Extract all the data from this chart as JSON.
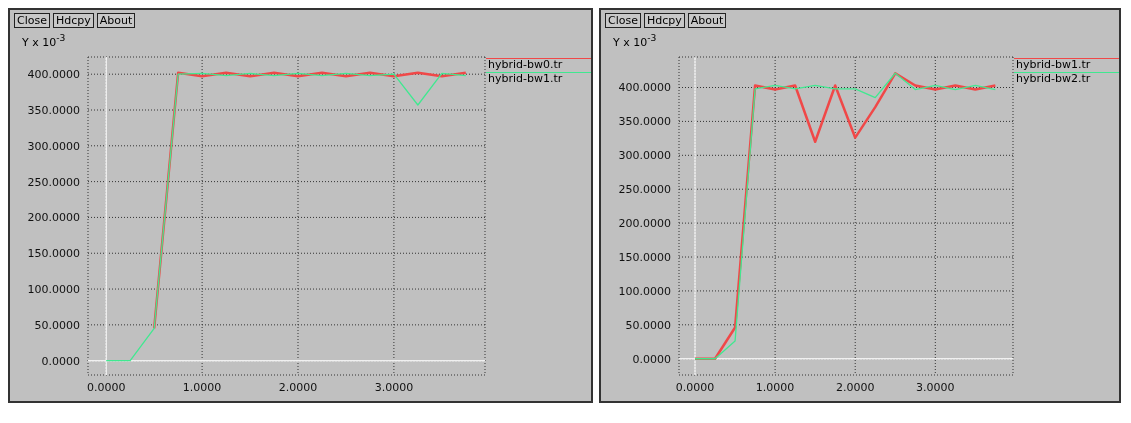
{
  "chart_data": [
    {
      "type": "line",
      "ylabel": "Y x 10$^{-3}$",
      "annotations": [
        "Close",
        "Hdcpy",
        "About"
      ],
      "grid": true,
      "legend": "top right",
      "marker": "none",
      "line_style": "solid",
      "x": [
        0,
        0.25,
        0.5,
        0.75,
        1,
        1.25,
        1.5,
        1.75,
        2,
        2.25,
        2.5,
        2.75,
        3,
        3.25,
        3.5,
        3.75
      ],
      "xlim": [
        -0.19,
        3.95
      ],
      "xticks": [
        {
          "value": 0,
          "label": "0.0000"
        },
        {
          "value": 1,
          "label": "1.0000"
        },
        {
          "value": 2,
          "label": "2.0000"
        },
        {
          "value": 3,
          "label": "3.0000"
        }
      ],
      "ylim": [
        -20,
        424
      ],
      "yticks": [
        {
          "value": 0,
          "label": "0.0000"
        },
        {
          "value": 50,
          "label": "50.0000"
        },
        {
          "value": 100,
          "label": "100.0000"
        },
        {
          "value": 150,
          "label": "150.0000"
        },
        {
          "value": 200,
          "label": "200.0000"
        },
        {
          "value": 250,
          "label": "250.0000"
        },
        {
          "value": 300,
          "label": "300.0000"
        },
        {
          "value": 350,
          "label": "350.0000"
        },
        {
          "value": 400,
          "label": "400.0000"
        }
      ],
      "series": [
        {
          "name": "hybrid-bw0.tr",
          "color": "#f04848",
          "values": [
            null,
            null,
            45,
            402,
            397,
            402,
            397,
            402,
            397,
            402,
            397,
            402,
            397,
            402,
            397,
            402
          ]
        },
        {
          "name": "hybrid-bw1.tr",
          "color": "#40e890",
          "values": [
            0,
            0,
            45,
            400,
            401,
            398,
            401,
            398,
            401,
            398,
            401,
            398,
            400,
            357,
            401,
            398
          ]
        }
      ]
    },
    {
      "type": "line",
      "ylabel": "Y x 10$^{-3}$",
      "annotations": [
        "Close",
        "Hdcpy",
        "About"
      ],
      "grid": true,
      "legend": "top right",
      "marker": "none",
      "line_style": "solid",
      "x": [
        0,
        0.25,
        0.5,
        0.75,
        1,
        1.25,
        1.5,
        1.75,
        2,
        2.25,
        2.5,
        2.75,
        3,
        3.25,
        3.5,
        3.75
      ],
      "xlim": [
        -0.2,
        3.97
      ],
      "xticks": [
        {
          "value": 0,
          "label": "0.0000"
        },
        {
          "value": 1,
          "label": "1.0000"
        },
        {
          "value": 2,
          "label": "2.0000"
        },
        {
          "value": 3,
          "label": "3.0000"
        }
      ],
      "ylim": [
        -24,
        445
      ],
      "yticks": [
        {
          "value": 0,
          "label": "0.0000"
        },
        {
          "value": 50,
          "label": "50.0000"
        },
        {
          "value": 100,
          "label": "100.0000"
        },
        {
          "value": 150,
          "label": "150.0000"
        },
        {
          "value": 200,
          "label": "200.0000"
        },
        {
          "value": 250,
          "label": "250.0000"
        },
        {
          "value": 300,
          "label": "300.0000"
        },
        {
          "value": 350,
          "label": "350.0000"
        },
        {
          "value": 400,
          "label": "400.0000"
        }
      ],
      "series": [
        {
          "name": "hybrid-bw1.tr",
          "color": "#f04848",
          "values": [
            0,
            0,
            46,
            403,
            397,
            403,
            320,
            403,
            326,
            371,
            421,
            403,
            397,
            403,
            397,
            403
          ]
        },
        {
          "name": "hybrid-bw2.tr",
          "color": "#40e890",
          "values": [
            0,
            0,
            26,
            398,
            403,
            398,
            403,
            398,
            398,
            385,
            421,
            397,
            403,
            397,
            403,
            397
          ]
        }
      ]
    }
  ]
}
